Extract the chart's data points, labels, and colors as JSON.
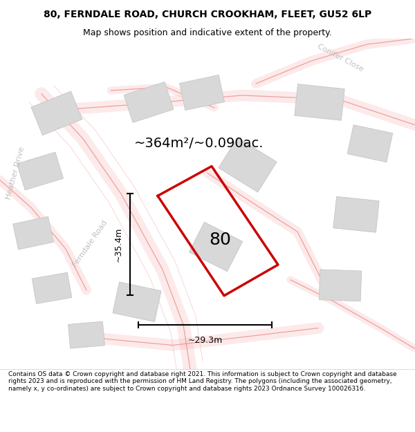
{
  "title": "80, FERNDALE ROAD, CHURCH CROOKHAM, FLEET, GU52 6LP",
  "subtitle": "Map shows position and indicative extent of the property.",
  "area_text": "~364m²/~0.090ac.",
  "label_80": "80",
  "dim_width": "~29.3m",
  "dim_height": "~35.4m",
  "map_bg": "#ffffff",
  "road_line_color": "#f09090",
  "building_color": "#d8d8d8",
  "building_edge": "#c0c0c0",
  "property_color": "#cc0000",
  "dim_line_color": "#000000",
  "footer_text": "Contains OS data © Crown copyright and database right 2021. This information is subject to Crown copyright and database rights 2023 and is reproduced with the permission of HM Land Registry. The polygons (including the associated geometry, namely x, y co-ordinates) are subject to Crown copyright and database rights 2023 Ordnance Survey 100026316."
}
